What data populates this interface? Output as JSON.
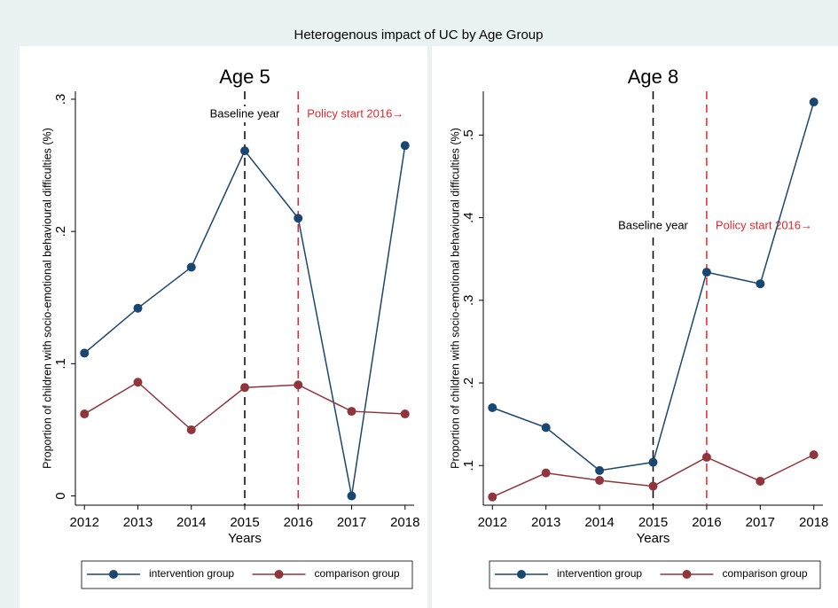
{
  "title": "Heterogenous impact of UC by Age Group",
  "chart_data": [
    {
      "type": "line",
      "title": "Age 5",
      "x": [
        2012,
        2013,
        2014,
        2015,
        2016,
        2017,
        2018
      ],
      "xlim": [
        2011.83,
        2018.17
      ],
      "xticks": [
        2012,
        2013,
        2014,
        2015,
        2016,
        2017,
        2018
      ],
      "ylim": [
        -0.007,
        0.306
      ],
      "yticks": [
        0,
        {
          "value": 0.1,
          "label": ".1"
        },
        {
          "value": 0.2,
          "label": ".2"
        },
        {
          "value": 0.3,
          "label": ".3"
        }
      ],
      "xlabel": "Years",
      "ylabel": "Proportion of children with socio-emotional behavioural difficulties (%)",
      "grid": false,
      "series": [
        {
          "name": "intervention group",
          "color": "#1a476f",
          "values": [
            0.108,
            0.142,
            0.173,
            0.261,
            0.21,
            0,
            0.265
          ]
        },
        {
          "name": "comparison group",
          "color": "#90353b",
          "values": [
            0.062,
            0.086,
            0.05,
            0.082,
            0.084,
            0.064,
            0.062
          ]
        }
      ],
      "vlines": [
        {
          "x": 2015,
          "label": "Baseline year",
          "color": "#000000"
        },
        {
          "x": 2016,
          "label": "Policy start 2016→",
          "color": "#e8262b"
        }
      ]
    },
    {
      "type": "line",
      "title": "Age 8",
      "x": [
        2012,
        2013,
        2014,
        2015,
        2016,
        2017,
        2018
      ],
      "xlim": [
        2011.83,
        2018.17
      ],
      "xticks": [
        2012,
        2013,
        2014,
        2015,
        2016,
        2017,
        2018
      ],
      "ylim": [
        0.052,
        0.553
      ],
      "yticks": [
        {
          "value": 0.1,
          "label": ".1"
        },
        {
          "value": 0.2,
          "label": ".2"
        },
        {
          "value": 0.3,
          "label": ".3"
        },
        {
          "value": 0.4,
          "label": ".4"
        },
        {
          "value": 0.5,
          "label": ".5"
        }
      ],
      "xlabel": "Years",
      "ylabel": "Proportion of children with socio-emotional behavioural difficulties (%)",
      "grid": false,
      "series": [
        {
          "name": "intervention group",
          "color": "#1a476f",
          "values": [
            0.17,
            0.146,
            0.094,
            0.104,
            0.334,
            0.32,
            0.54
          ]
        },
        {
          "name": "comparison group",
          "color": "#90353b",
          "values": [
            0.062,
            0.091,
            0.082,
            0.075,
            0.11,
            0.081,
            0.113
          ]
        }
      ],
      "vlines": [
        {
          "x": 2015,
          "label": "Baseline year",
          "color": "#000000"
        },
        {
          "x": 2016,
          "label": "Policy start 2016→",
          "color": "#e8262b"
        }
      ]
    }
  ]
}
